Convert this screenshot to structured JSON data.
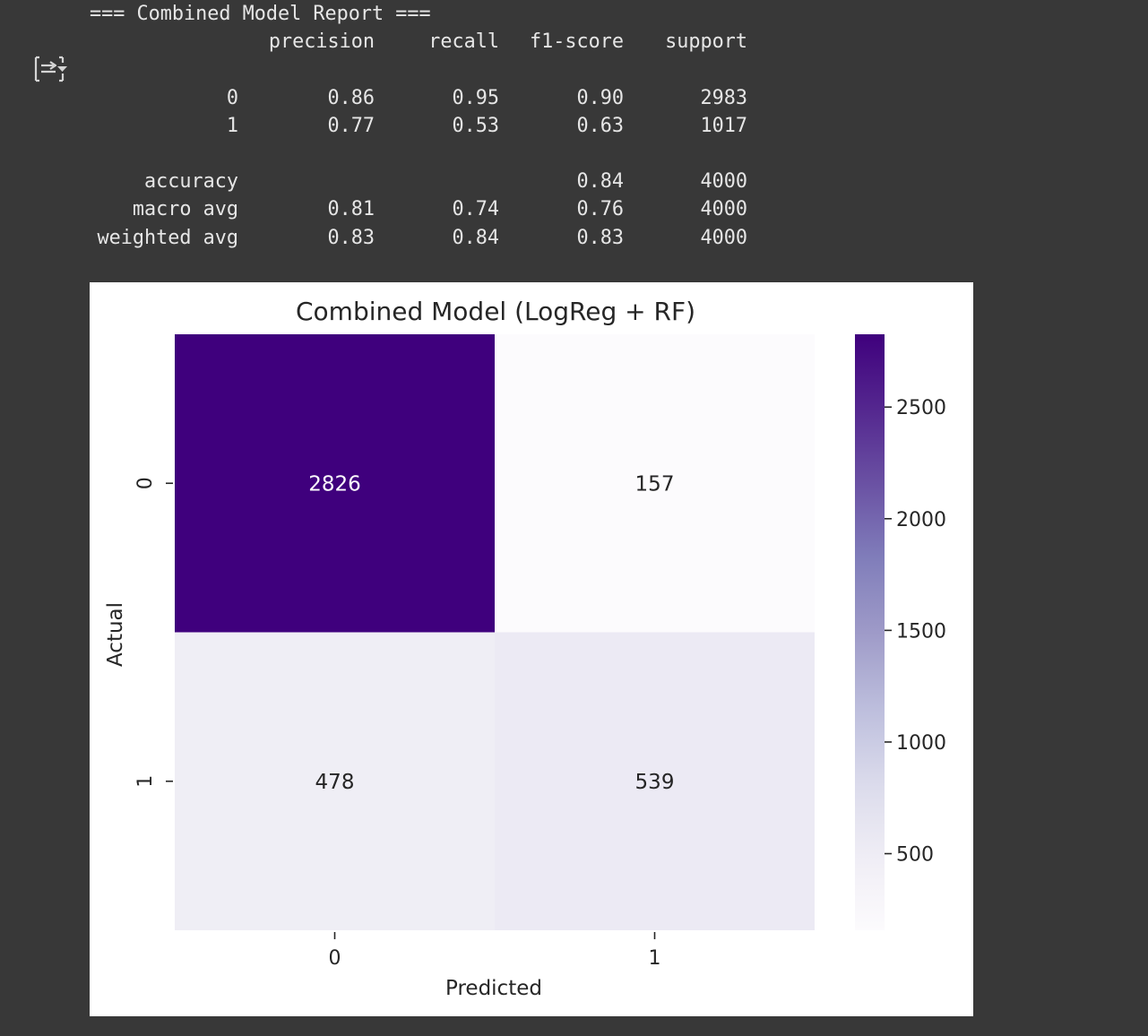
{
  "report": {
    "title": "=== Combined Model Report ===",
    "headers": [
      "precision",
      "recall",
      "f1-score",
      "support"
    ],
    "class_rows": [
      {
        "label": "0",
        "precision": "0.86",
        "recall": "0.95",
        "f1": "0.90",
        "support": "2983"
      },
      {
        "label": "1",
        "precision": "0.77",
        "recall": "0.53",
        "f1": "0.63",
        "support": "1017"
      }
    ],
    "summary_rows": [
      {
        "label": "accuracy",
        "precision": "",
        "recall": "",
        "f1": "0.84",
        "support": "4000"
      },
      {
        "label": "macro avg",
        "precision": "0.81",
        "recall": "0.74",
        "f1": "0.76",
        "support": "4000"
      },
      {
        "label": "weighted avg",
        "precision": "0.83",
        "recall": "0.84",
        "f1": "0.83",
        "support": "4000"
      }
    ]
  },
  "output_icon": "output-settings-icon",
  "chart_data": {
    "type": "heatmap",
    "title": "Combined Model (LogReg + RF)",
    "xlabel": "Predicted",
    "ylabel": "Actual",
    "x_categories": [
      "0",
      "1"
    ],
    "y_categories": [
      "0",
      "1"
    ],
    "values": [
      [
        2826,
        157
      ],
      [
        478,
        539
      ]
    ],
    "colormap": "Purples",
    "colorbar": {
      "ticks": [
        500,
        1000,
        1500,
        2000,
        2500
      ],
      "range": [
        157,
        2826
      ]
    },
    "colors": {
      "max": "#3f007d",
      "min": "#fcfbfd",
      "text_dark": "#262626",
      "text_light": "#ffffff"
    }
  }
}
